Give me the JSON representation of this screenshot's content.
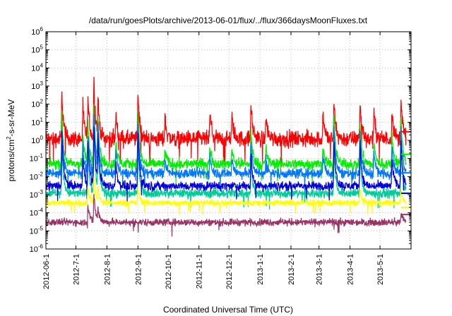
{
  "chart_data": {
    "type": "line",
    "title": "/data/run/goesPlots/archive/2013-06-01/flux/../flux/366daysMoonFluxes.txt",
    "xlabel": "Coordinated Universal Time (UTC)",
    "ylabel_prefix": "protons/cm",
    "ylabel_sup": "2",
    "ylabel_suffix": "-s-sr-MeV",
    "yscale": "log",
    "ylim": [
      1e-06,
      1000000
    ],
    "xlim": [
      "2012-06-01",
      "2013-06-01"
    ],
    "grid": true,
    "legend": "none",
    "y_ticks": [
      {
        "base": "10",
        "exp": "6"
      },
      {
        "base": "10",
        "exp": "5"
      },
      {
        "base": "10",
        "exp": "4"
      },
      {
        "base": "10",
        "exp": "3"
      },
      {
        "base": "10",
        "exp": "2"
      },
      {
        "base": "10",
        "exp": "1"
      },
      {
        "base": "10",
        "exp": "0"
      },
      {
        "base": "10",
        "exp": "-1"
      },
      {
        "base": "10",
        "exp": "-2"
      },
      {
        "base": "10",
        "exp": "-3"
      },
      {
        "base": "10",
        "exp": "-4"
      },
      {
        "base": "10",
        "exp": "-5"
      },
      {
        "base": "10",
        "exp": "-6"
      }
    ],
    "x_ticks": [
      "2012-06-1",
      "2012-7-1",
      "2012-8-1",
      "2012-9-1",
      "2012-10-1",
      "2012-11-1",
      "2012-12-1",
      "2013-1-1",
      "2013-2-1",
      "2013-3-1",
      "2013-4-1",
      "2013-5-1"
    ],
    "x_tick_values": [
      "2012-06-01",
      "2012-07-01",
      "2012-08-01",
      "2012-09-01",
      "2012-10-01",
      "2012-11-01",
      "2012-12-01",
      "2013-01-01",
      "2013-02-01",
      "2013-03-01",
      "2013-04-01",
      "2013-05-01"
    ],
    "series": [
      {
        "color": "#ff0000",
        "baseline": 1.2,
        "noise": 0.45,
        "last": 3,
        "peaks": [
          [
            "2012-06-17",
            400
          ],
          [
            "2012-07-08",
            60
          ],
          [
            "2012-07-13",
            200
          ],
          [
            "2012-07-19",
            2000
          ],
          [
            "2012-07-23",
            200
          ],
          [
            "2012-08-10",
            30
          ],
          [
            "2012-09-01",
            700
          ],
          [
            "2012-09-28",
            20
          ],
          [
            "2012-11-12",
            30
          ],
          [
            "2012-12-04",
            20
          ],
          [
            "2012-12-23",
            100
          ],
          [
            "2013-01-07",
            20
          ],
          [
            "2013-03-05",
            30
          ],
          [
            "2013-03-16",
            100
          ],
          [
            "2013-04-11",
            150
          ],
          [
            "2013-04-25",
            30
          ],
          [
            "2013-05-13",
            40
          ],
          [
            "2013-05-22",
            200
          ]
        ]
      },
      {
        "color": "#00ee00",
        "baseline": 0.05,
        "noise": 0.3,
        "last": 0.17,
        "peaks": [
          [
            "2012-06-17",
            20
          ],
          [
            "2012-07-08",
            2
          ],
          [
            "2012-07-13",
            10
          ],
          [
            "2012-07-19",
            100
          ],
          [
            "2012-07-23",
            30
          ],
          [
            "2012-08-10",
            1
          ],
          [
            "2012-09-01",
            40
          ],
          [
            "2012-09-28",
            0.3
          ],
          [
            "2012-11-12",
            0.5
          ],
          [
            "2012-12-04",
            0.4
          ],
          [
            "2012-12-23",
            3
          ],
          [
            "2013-01-07",
            0.4
          ],
          [
            "2013-03-05",
            0.5
          ],
          [
            "2013-03-16",
            20
          ],
          [
            "2013-04-11",
            10
          ],
          [
            "2013-04-25",
            0.6
          ],
          [
            "2013-05-13",
            2
          ],
          [
            "2013-05-22",
            20
          ]
        ]
      },
      {
        "color": "#0077ff",
        "baseline": 0.015,
        "noise": 0.28,
        "last": 0.016,
        "peaks": [
          [
            "2012-06-17",
            5
          ],
          [
            "2012-07-08",
            0.5
          ],
          [
            "2012-07-13",
            3
          ],
          [
            "2012-07-19",
            30
          ],
          [
            "2012-07-23",
            8
          ],
          [
            "2012-08-10",
            0.3
          ],
          [
            "2012-09-01",
            10
          ],
          [
            "2012-09-28",
            0.1
          ],
          [
            "2012-11-12",
            0.15
          ],
          [
            "2012-12-04",
            0.1
          ],
          [
            "2012-12-23",
            1
          ],
          [
            "2013-01-07",
            0.1
          ],
          [
            "2013-03-05",
            0.15
          ],
          [
            "2013-03-16",
            5
          ],
          [
            "2013-04-11",
            3
          ],
          [
            "2013-04-25",
            0.2
          ],
          [
            "2013-05-13",
            0.5
          ],
          [
            "2013-05-22",
            5
          ]
        ]
      },
      {
        "color": "#00cc99",
        "baseline": 0.0012,
        "noise": 0.25,
        "last": 0.0012,
        "peaks": [
          [
            "2012-06-17",
            0.4
          ],
          [
            "2012-07-13",
            0.2
          ],
          [
            "2012-07-19",
            2
          ],
          [
            "2012-07-23",
            0.5
          ],
          [
            "2012-09-01",
            0.5
          ],
          [
            "2012-12-23",
            0.05
          ],
          [
            "2013-03-16",
            0.3
          ],
          [
            "2013-04-11",
            0.2
          ],
          [
            "2013-05-22",
            0.3
          ]
        ]
      },
      {
        "color": "#0000dd",
        "baseline": 0.003,
        "noise": 0.25,
        "last": 0.0012,
        "peaks": [
          [
            "2012-06-17",
            2
          ],
          [
            "2012-07-08",
            0.1
          ],
          [
            "2012-07-13",
            1
          ],
          [
            "2012-07-19",
            8
          ],
          [
            "2012-07-23",
            2
          ],
          [
            "2012-08-10",
            0.05
          ],
          [
            "2012-09-01",
            3
          ],
          [
            "2012-12-23",
            0.2
          ],
          [
            "2013-03-16",
            1
          ],
          [
            "2013-04-11",
            0.8
          ],
          [
            "2013-05-13",
            0.1
          ],
          [
            "2013-05-22",
            1
          ]
        ]
      },
      {
        "color": "#ffff00",
        "baseline": 0.00035,
        "noise": 0.18,
        "last": 0.0002,
        "peaks": [
          [
            "2012-07-13",
            0.003
          ],
          [
            "2012-07-19",
            0.01
          ],
          [
            "2012-07-23",
            0.003
          ],
          [
            "2012-09-01",
            0.003
          ],
          [
            "2013-04-11",
            0.002
          ],
          [
            "2013-05-22",
            0.002
          ]
        ]
      },
      {
        "color": "#993366",
        "baseline": 3e-05,
        "noise": 0.2,
        "last": 8e-05,
        "peaks": [
          [
            "2012-07-13",
            0.0003
          ],
          [
            "2012-07-19",
            0.001
          ],
          [
            "2012-07-23",
            0.0002
          ],
          [
            "2013-05-22",
            0.0001
          ]
        ]
      }
    ]
  }
}
